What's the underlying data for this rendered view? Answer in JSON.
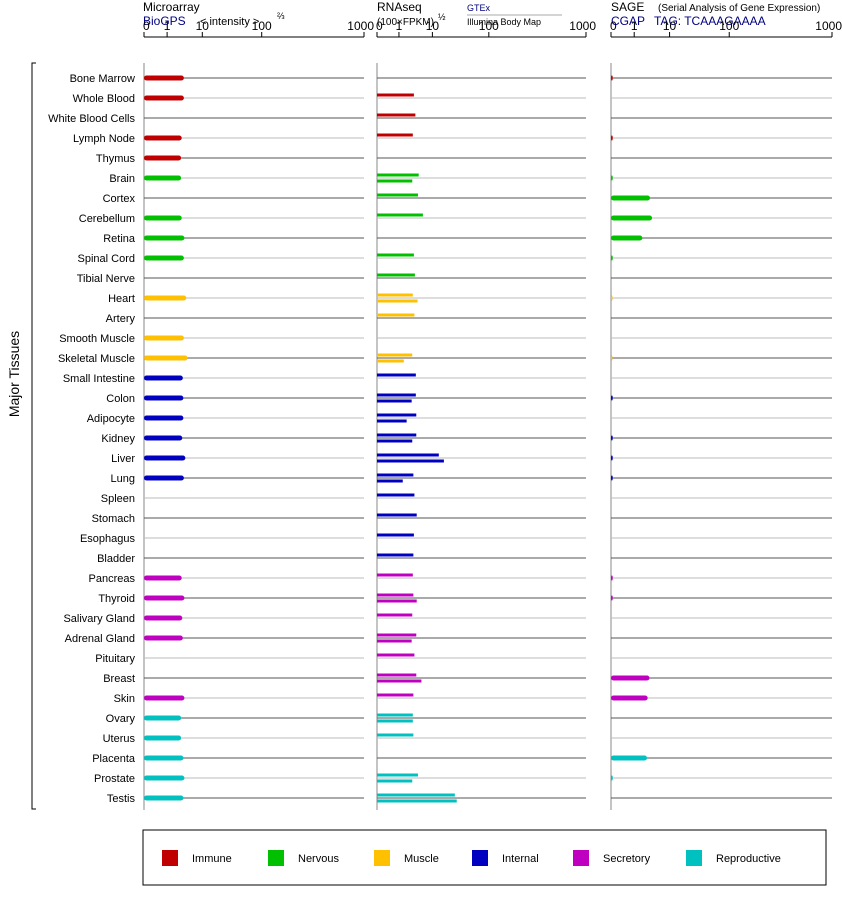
{
  "panels": {
    "microarray": {
      "title": "Microarray",
      "source": "BioGPS",
      "scale_note": "< intensity >",
      "scale_exp": "⅔"
    },
    "rnaseq": {
      "title": "RNAseq",
      "scale_note": "(100×FPKM)",
      "scale_exp": "½",
      "source_1": "GTEx",
      "source_2": "Illumina Body Map"
    },
    "sage": {
      "title": "SAGE",
      "subtitle": "(Serial Analysis of Gene Expression)",
      "source": "CGAP",
      "tag": "TAG: TCAAAGAAAA"
    }
  },
  "y_group_label": "Major Tissues",
  "legend": [
    {
      "label": "Immune",
      "color": "#c00000"
    },
    {
      "label": "Nervous",
      "color": "#00c000"
    },
    {
      "label": "Muscle",
      "color": "#ffc000"
    },
    {
      "label": "Internal",
      "color": "#0000c0"
    },
    {
      "label": "Secretory",
      "color": "#c000c0"
    },
    {
      "label": "Reproductive",
      "color": "#00c0c0"
    }
  ],
  "chart_data": {
    "type": "bar",
    "orientation": "horizontal",
    "x_scale": "power-transformed (log-like)",
    "x_ticks": [
      "0",
      "1",
      "10",
      "100",
      "1000"
    ],
    "xlim": [
      0,
      1000
    ],
    "categories": [
      "Bone Marrow",
      "Whole Blood",
      "White Blood Cells",
      "Lymph Node",
      "Thymus",
      "Brain",
      "Cortex",
      "Cerebellum",
      "Retina",
      "Spinal Cord",
      "Tibial Nerve",
      "Heart",
      "Artery",
      "Smooth Muscle",
      "Skeletal Muscle",
      "Small Intestine",
      "Colon",
      "Adipocyte",
      "Kidney",
      "Liver",
      "Lung",
      "Spleen",
      "Stomach",
      "Esophagus",
      "Bladder",
      "Pancreas",
      "Thyroid",
      "Salivary Gland",
      "Adrenal Gland",
      "Pituitary",
      "Breast",
      "Skin",
      "Ovary",
      "Uterus",
      "Placenta",
      "Prostate",
      "Testis"
    ],
    "category_groups": [
      "Immune",
      "Immune",
      "Immune",
      "Immune",
      "Immune",
      "Nervous",
      "Nervous",
      "Nervous",
      "Nervous",
      "Nervous",
      "Nervous",
      "Muscle",
      "Muscle",
      "Muscle",
      "Muscle",
      "Internal",
      "Internal",
      "Internal",
      "Internal",
      "Internal",
      "Internal",
      "Internal",
      "Internal",
      "Internal",
      "Internal",
      "Secretory",
      "Secretory",
      "Secretory",
      "Secretory",
      "Secretory",
      "Secretory",
      "Secretory",
      "Reproductive",
      "Reproductive",
      "Reproductive",
      "Reproductive",
      "Reproductive"
    ],
    "microarray": [
      3.0,
      3.0,
      null,
      2.6,
      2.5,
      2.5,
      null,
      2.6,
      3.1,
      3.0,
      null,
      3.5,
      null,
      3.0,
      3.8,
      2.8,
      2.9,
      2.9,
      2.7,
      3.3,
      3.0,
      null,
      null,
      null,
      null,
      2.6,
      3.1,
      2.7,
      2.8,
      null,
      null,
      3.1,
      2.5,
      2.5,
      2.9,
      3.1,
      2.9
    ],
    "rnaseq_gtex": [
      null,
      2.8,
      3.1,
      2.6,
      null,
      3.9,
      3.7,
      5.2,
      null,
      2.8,
      3.0,
      2.6,
      2.9,
      null,
      2.5,
      3.2,
      3.2,
      3.3,
      3.3,
      13,
      2.7,
      2.9,
      3.4,
      2.8,
      2.7,
      2.6,
      2.7,
      2.5,
      3.3,
      2.9,
      3.3,
      2.7,
      2.6,
      2.7,
      null,
      3.7,
      25
    ],
    "rnaseq_ibm": [
      null,
      null,
      null,
      null,
      null,
      2.5,
      null,
      null,
      null,
      null,
      null,
      3.6,
      null,
      null,
      1.4,
      null,
      2.4,
      1.7,
      2.5,
      16,
      1.3,
      null,
      null,
      null,
      null,
      null,
      3.4,
      null,
      2.4,
      null,
      4.7,
      null,
      2.6,
      null,
      null,
      2.5,
      27
    ],
    "sage": [
      0.02,
      null,
      null,
      0.02,
      null,
      0.02,
      2.8,
      3.2,
      1.7,
      0.02,
      null,
      0.01,
      null,
      null,
      0.01,
      null,
      0.02,
      null,
      0.02,
      0.02,
      0.02,
      null,
      null,
      null,
      null,
      0.02,
      0.02,
      null,
      null,
      null,
      2.7,
      2.4,
      null,
      null,
      2.3,
      0.02,
      null
    ]
  }
}
